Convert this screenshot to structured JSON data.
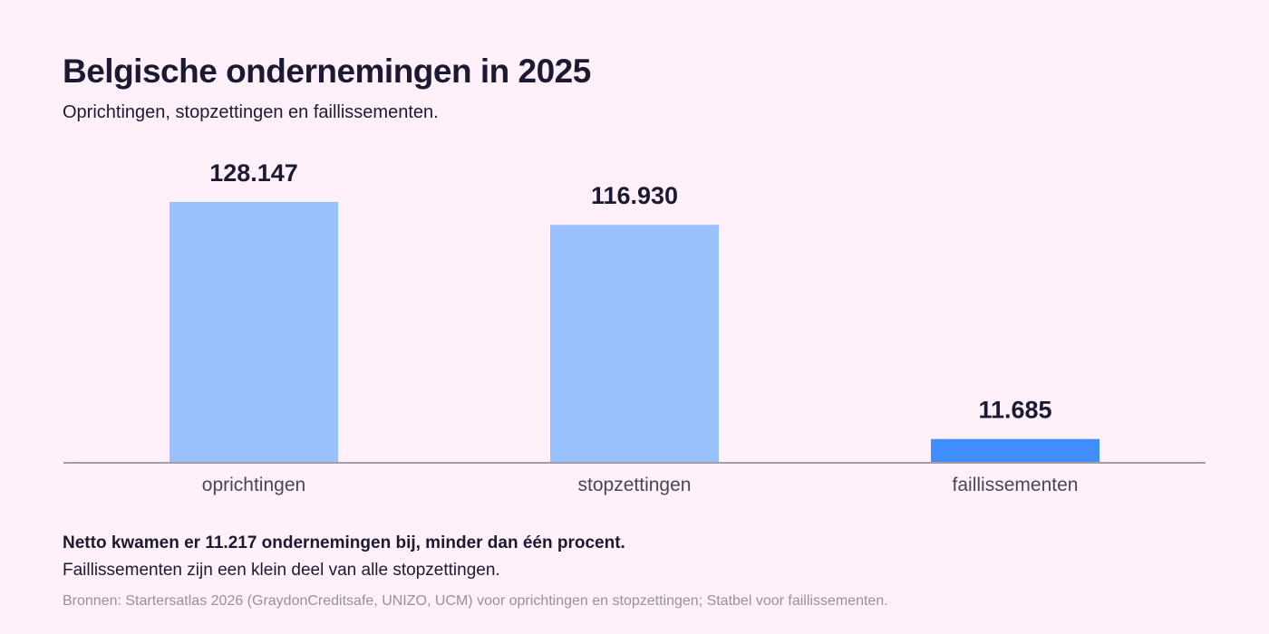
{
  "header": {
    "title": "Belgische ondernemingen in 2025",
    "subtitle": "Oprichtingen, stopzettingen en faillissementen."
  },
  "footer": {
    "note_bold": "Netto kwamen er 11.217 ondernemingen bij, minder dan één procent.",
    "note": "Faillissementen zijn een klein deel van alle stopzettingen.",
    "source": "Bronnen: Startersatlas 2026 (GraydonCreditsafe, UNIZO, UCM) voor oprichtingen en stopzettingen; Statbel voor faillissementen."
  },
  "chart_data": {
    "type": "bar",
    "title": "Belgische ondernemingen in 2025",
    "subtitle": "Oprichtingen, stopzettingen en faillissementen.",
    "categories": [
      "oprichtingen",
      "stopzettingen",
      "faillissementen"
    ],
    "values": [
      128147,
      116930,
      11685
    ],
    "value_labels": [
      "128.147",
      "116.930",
      "11.685"
    ],
    "bar_colors": [
      "#98c1fd",
      "#98c1fd",
      "#3f8efc"
    ],
    "xlabel": "",
    "ylabel": "",
    "ylim": [
      0,
      128147
    ],
    "grid": false,
    "legend": "none",
    "colors": {
      "background": "#fff0fa",
      "axis": "#a49ca6",
      "text": "#1c1a33",
      "tick_text": "#4a4458"
    }
  }
}
